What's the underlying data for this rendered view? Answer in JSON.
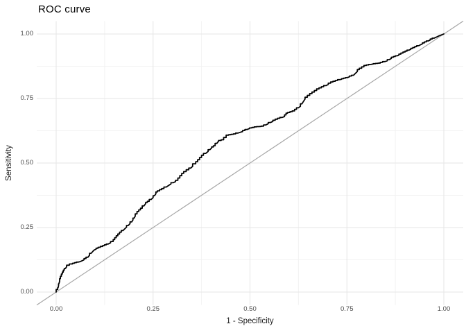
{
  "title": "ROC curve",
  "colors": {
    "background": "#ffffff",
    "grid_major": "#e6e6e6",
    "grid_minor": "#f2f2f2",
    "diagonal": "#a6a6a6",
    "curve": "#000000",
    "tick_text": "#4d4d4d",
    "axis_title_text": "#1a1a1a",
    "title_text": "#000000"
  },
  "chart_data": {
    "type": "line",
    "title": "ROC curve",
    "xlabel": "1 - Specificity",
    "ylabel": "Sensitivity",
    "xlim": [
      0,
      1
    ],
    "ylim": [
      0,
      1
    ],
    "grid": "major+minor",
    "legend": "none",
    "x_ticks": [
      0,
      0.25,
      0.5,
      0.75,
      1.0
    ],
    "x_tick_labels": [
      "0.00",
      "0.25",
      "0.50",
      "0.75",
      "1.00"
    ],
    "x_minor_ticks": [
      0.125,
      0.375,
      0.625,
      0.875
    ],
    "y_ticks": [
      0,
      0.25,
      0.5,
      0.75,
      1.0
    ],
    "y_tick_labels": [
      "0.00",
      "0.25",
      "0.50",
      "0.75",
      "1.00"
    ],
    "y_minor_ticks": [
      0.125,
      0.375,
      0.625,
      0.875
    ],
    "series": [
      {
        "name": "roc-curve",
        "style": "step",
        "color": "#000000",
        "points": [
          [
            0.0,
            0.0
          ],
          [
            0.004,
            0.01
          ],
          [
            0.007,
            0.032
          ],
          [
            0.011,
            0.052
          ],
          [
            0.016,
            0.07
          ],
          [
            0.021,
            0.085
          ],
          [
            0.027,
            0.098
          ],
          [
            0.034,
            0.104
          ],
          [
            0.042,
            0.109
          ],
          [
            0.052,
            0.114
          ],
          [
            0.062,
            0.118
          ],
          [
            0.072,
            0.125
          ],
          [
            0.082,
            0.135
          ],
          [
            0.09,
            0.15
          ],
          [
            0.098,
            0.163
          ],
          [
            0.108,
            0.17
          ],
          [
            0.12,
            0.177
          ],
          [
            0.134,
            0.186
          ],
          [
            0.147,
            0.196
          ],
          [
            0.159,
            0.218
          ],
          [
            0.168,
            0.232
          ],
          [
            0.177,
            0.245
          ],
          [
            0.186,
            0.258
          ],
          [
            0.195,
            0.272
          ],
          [
            0.204,
            0.294
          ],
          [
            0.213,
            0.312
          ],
          [
            0.222,
            0.325
          ],
          [
            0.231,
            0.343
          ],
          [
            0.24,
            0.352
          ],
          [
            0.25,
            0.366
          ],
          [
            0.261,
            0.388
          ],
          [
            0.278,
            0.401
          ],
          [
            0.296,
            0.419
          ],
          [
            0.314,
            0.433
          ],
          [
            0.329,
            0.46
          ],
          [
            0.342,
            0.474
          ],
          [
            0.352,
            0.487
          ],
          [
            0.36,
            0.497
          ],
          [
            0.37,
            0.513
          ],
          [
            0.38,
            0.53
          ],
          [
            0.392,
            0.545
          ],
          [
            0.401,
            0.558
          ],
          [
            0.41,
            0.567
          ],
          [
            0.419,
            0.585
          ],
          [
            0.432,
            0.59
          ],
          [
            0.445,
            0.608
          ],
          [
            0.463,
            0.613
          ],
          [
            0.481,
            0.622
          ],
          [
            0.499,
            0.634
          ],
          [
            0.517,
            0.64
          ],
          [
            0.535,
            0.643
          ],
          [
            0.553,
            0.657
          ],
          [
            0.571,
            0.67
          ],
          [
            0.589,
            0.68
          ],
          [
            0.597,
            0.693
          ],
          [
            0.615,
            0.702
          ],
          [
            0.63,
            0.72
          ],
          [
            0.642,
            0.748
          ],
          [
            0.66,
            0.769
          ],
          [
            0.678,
            0.787
          ],
          [
            0.696,
            0.8
          ],
          [
            0.714,
            0.814
          ],
          [
            0.732,
            0.823
          ],
          [
            0.751,
            0.831
          ],
          [
            0.767,
            0.84
          ],
          [
            0.782,
            0.862
          ],
          [
            0.8,
            0.878
          ],
          [
            0.818,
            0.884
          ],
          [
            0.836,
            0.887
          ],
          [
            0.854,
            0.896
          ],
          [
            0.87,
            0.91
          ],
          [
            0.884,
            0.918
          ],
          [
            0.9,
            0.93
          ],
          [
            0.915,
            0.941
          ],
          [
            0.93,
            0.951
          ],
          [
            0.945,
            0.962
          ],
          [
            0.96,
            0.973
          ],
          [
            0.975,
            0.984
          ],
          [
            0.988,
            0.993
          ],
          [
            1.0,
            1.0
          ]
        ]
      },
      {
        "name": "chance-diagonal",
        "style": "abline",
        "slope": 1,
        "intercept": 0,
        "color": "#a6a6a6"
      }
    ]
  }
}
